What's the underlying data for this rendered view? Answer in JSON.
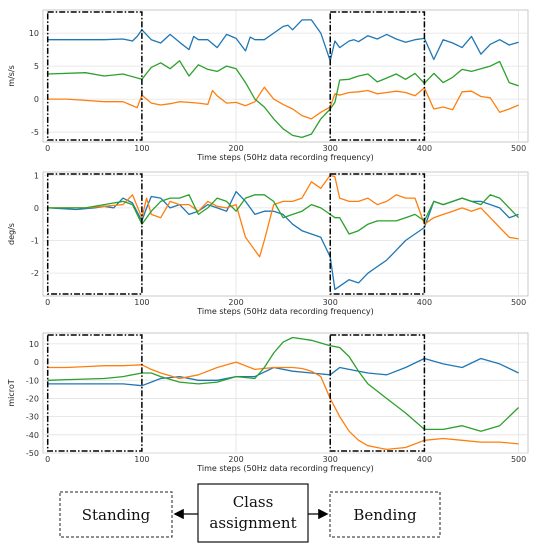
{
  "chart_data": [
    {
      "type": "line",
      "ylabel": "m/s/s",
      "xlabel": "Time steps (50Hz data recording frequency)",
      "xlim": [
        -5,
        510
      ],
      "ylim": [
        -6.5,
        13.5
      ],
      "xticks": [
        0,
        100,
        200,
        300,
        400,
        500
      ],
      "yticks": [
        -5,
        0,
        5,
        10
      ],
      "grid": true,
      "highlight_windows": [
        [
          0,
          100
        ],
        [
          300,
          400
        ]
      ],
      "series": [
        {
          "color": "#1f77b4",
          "x": [
            0,
            40,
            60,
            80,
            90,
            95,
            100,
            110,
            120,
            130,
            140,
            150,
            155,
            160,
            170,
            180,
            190,
            200,
            210,
            215,
            220,
            230,
            240,
            250,
            255,
            260,
            270,
            280,
            290,
            300,
            305,
            310,
            320,
            325,
            330,
            340,
            350,
            360,
            370,
            380,
            390,
            400,
            410,
            420,
            430,
            440,
            450,
            460,
            470,
            480,
            490,
            500
          ],
          "y": [
            9,
            9,
            9,
            9.1,
            8.8,
            9.5,
            10.5,
            9,
            8.5,
            9.8,
            8.6,
            7.5,
            9.5,
            9,
            9,
            7.8,
            9.8,
            9.2,
            7.3,
            9.4,
            9,
            9,
            10,
            11,
            11.2,
            10.5,
            12,
            12,
            10,
            5.8,
            8.8,
            7.8,
            8.8,
            9,
            8.7,
            9.6,
            9.1,
            9.8,
            9.1,
            8.6,
            9,
            9.2,
            6,
            9,
            8.5,
            7.8,
            9.5,
            6.8,
            8.3,
            9,
            8.2,
            8.6
          ]
        },
        {
          "color": "#ff7f0e",
          "x": [
            0,
            20,
            40,
            60,
            80,
            95,
            100,
            110,
            120,
            130,
            140,
            150,
            160,
            170,
            175,
            180,
            190,
            200,
            210,
            220,
            230,
            240,
            250,
            260,
            270,
            280,
            290,
            300,
            305,
            310,
            320,
            330,
            340,
            350,
            360,
            370,
            380,
            390,
            400,
            410,
            420,
            430,
            440,
            450,
            460,
            470,
            480,
            490,
            500
          ],
          "y": [
            0,
            0,
            -0.2,
            -0.4,
            -0.4,
            -1.3,
            0.6,
            -0.6,
            -0.9,
            -0.7,
            -0.4,
            -0.5,
            -0.6,
            -0.8,
            1.3,
            0.5,
            -0.6,
            -0.5,
            -1,
            -0.4,
            1.8,
            0,
            -0.8,
            -1.5,
            -2.5,
            -3,
            -2,
            -1.2,
            0.8,
            0.6,
            1,
            1.1,
            1.3,
            0.8,
            1,
            1.2,
            1,
            0.5,
            1.7,
            -1.5,
            -1.2,
            -1.6,
            1.1,
            1.2,
            0.4,
            0.2,
            -2,
            -1.5,
            -0.9
          ]
        },
        {
          "color": "#2ca02c",
          "x": [
            0,
            40,
            60,
            80,
            100,
            110,
            120,
            130,
            140,
            150,
            160,
            170,
            180,
            190,
            200,
            210,
            220,
            230,
            240,
            250,
            260,
            270,
            280,
            290,
            300,
            305,
            310,
            320,
            330,
            340,
            350,
            360,
            370,
            380,
            390,
            400,
            410,
            420,
            430,
            440,
            450,
            460,
            470,
            480,
            490,
            500
          ],
          "y": [
            3.8,
            4,
            3.5,
            3.8,
            3,
            4.8,
            5.5,
            4.6,
            5.8,
            3.5,
            5.2,
            4.5,
            4.2,
            5,
            4.6,
            2.5,
            0,
            -1.2,
            -3,
            -4.5,
            -5.5,
            -5.8,
            -5.3,
            -3,
            -1.5,
            -0.5,
            2.9,
            3,
            3.5,
            3.8,
            2.6,
            3.2,
            3.8,
            3,
            3.9,
            2.4,
            3.9,
            2.5,
            3.3,
            4.5,
            4.2,
            4.6,
            5,
            5.7,
            2.5,
            2
          ]
        }
      ]
    },
    {
      "type": "line",
      "ylabel": "deg/s",
      "xlabel": "Time steps (50Hz data recording frequency)",
      "xlim": [
        -5,
        510
      ],
      "ylim": [
        -2.7,
        1.1
      ],
      "xticks": [
        0,
        100,
        200,
        300,
        400,
        500
      ],
      "yticks": [
        -2,
        -1,
        0,
        1
      ],
      "grid": true,
      "highlight_windows": [
        [
          0,
          100
        ],
        [
          300,
          400
        ]
      ],
      "series": [
        {
          "color": "#1f77b4",
          "x": [
            0,
            30,
            50,
            60,
            70,
            80,
            90,
            100,
            105,
            110,
            120,
            130,
            140,
            150,
            160,
            170,
            180,
            190,
            200,
            210,
            220,
            230,
            240,
            250,
            260,
            270,
            280,
            290,
            295,
            300,
            305,
            310,
            320,
            330,
            340,
            350,
            360,
            370,
            380,
            390,
            400,
            410,
            420,
            430,
            440,
            450,
            460,
            470,
            480,
            490,
            500
          ],
          "y": [
            0,
            -0.05,
            0,
            0.05,
            0,
            0.3,
            0.15,
            -0.4,
            0,
            0.35,
            0.3,
            0,
            0.1,
            -0.2,
            -0.1,
            0.1,
            0,
            -0.1,
            0.5,
            0.2,
            -0.2,
            -0.1,
            -0.1,
            -0.2,
            -0.5,
            -0.7,
            -0.8,
            -0.9,
            -1.2,
            -1.5,
            -2.5,
            -2.4,
            -2.2,
            -2.3,
            -2.0,
            -1.8,
            -1.6,
            -1.3,
            -1.0,
            -0.8,
            -0.6,
            0.2,
            0.1,
            0.2,
            0.3,
            0.2,
            0.2,
            0.1,
            0,
            -0.3,
            -0.2
          ]
        },
        {
          "color": "#ff7f0e",
          "x": [
            0,
            40,
            60,
            80,
            90,
            100,
            105,
            110,
            120,
            130,
            140,
            150,
            160,
            170,
            180,
            190,
            200,
            210,
            220,
            225,
            230,
            240,
            250,
            260,
            270,
            280,
            290,
            300,
            305,
            310,
            320,
            330,
            340,
            350,
            360,
            370,
            380,
            390,
            400,
            410,
            420,
            430,
            440,
            450,
            460,
            470,
            480,
            490,
            500
          ],
          "y": [
            0,
            0,
            0.05,
            0.1,
            0.4,
            -0.3,
            0.3,
            -0.2,
            -0.3,
            0.2,
            0.1,
            0.1,
            -0.1,
            0.2,
            0.05,
            0,
            0.1,
            -0.9,
            -1.3,
            -1.5,
            -1.0,
            0.1,
            0.2,
            0.2,
            0.3,
            0.8,
            0.6,
            1.0,
            0.95,
            0.3,
            0.2,
            0.2,
            0.3,
            0.1,
            0.2,
            0.4,
            0.3,
            0.3,
            -0.5,
            -0.3,
            -0.2,
            -0.1,
            0,
            -0.1,
            0,
            -0.3,
            -0.6,
            -0.9,
            -0.95
          ]
        },
        {
          "color": "#2ca02c",
          "x": [
            0,
            40,
            60,
            80,
            90,
            100,
            110,
            120,
            130,
            140,
            150,
            160,
            170,
            180,
            190,
            200,
            210,
            220,
            230,
            240,
            250,
            260,
            270,
            280,
            290,
            300,
            305,
            310,
            320,
            330,
            340,
            350,
            360,
            370,
            380,
            390,
            400,
            410,
            420,
            430,
            440,
            450,
            460,
            470,
            480,
            490,
            500
          ],
          "y": [
            0,
            0,
            0.1,
            0.2,
            0.1,
            -0.5,
            -0.1,
            0.2,
            0.3,
            0.3,
            0.4,
            -0.2,
            0,
            0.3,
            0.2,
            -0.1,
            0.3,
            0.4,
            0.4,
            0.2,
            -0.3,
            -0.2,
            -0.1,
            0.1,
            0,
            -0.2,
            -0.3,
            -0.3,
            -0.8,
            -0.7,
            -0.5,
            -0.4,
            -0.4,
            -0.4,
            -0.3,
            -0.2,
            -0.4,
            0.2,
            0.1,
            0.2,
            0.3,
            0.2,
            0.1,
            0.4,
            0.3,
            0,
            -0.3
          ]
        }
      ]
    },
    {
      "type": "line",
      "ylabel": "microT",
      "xlabel": "Time steps (50Hz data recording frequency)",
      "xlim": [
        -5,
        510
      ],
      "ylim": [
        -50,
        16
      ],
      "xticks": [
        0,
        100,
        200,
        300,
        400,
        500
      ],
      "yticks": [
        -50,
        -40,
        -30,
        -20,
        -10,
        0,
        10
      ],
      "grid": true,
      "highlight_windows": [
        [
          0,
          100
        ],
        [
          300,
          400
        ]
      ],
      "series": [
        {
          "color": "#1f77b4",
          "x": [
            0,
            30,
            60,
            80,
            100,
            110,
            120,
            140,
            160,
            180,
            200,
            220,
            240,
            260,
            280,
            300,
            310,
            320,
            340,
            360,
            380,
            400,
            420,
            440,
            460,
            480,
            500
          ],
          "y": [
            -12,
            -12,
            -12,
            -12,
            -13,
            -11,
            -9,
            -8,
            -10,
            -10,
            -8,
            -8,
            -3,
            -5,
            -6,
            -7,
            -3,
            -4,
            -6,
            -7,
            -3,
            2,
            -1,
            -3,
            2,
            -1,
            -6
          ]
        },
        {
          "color": "#ff7f0e",
          "x": [
            0,
            20,
            40,
            60,
            80,
            100,
            110,
            120,
            140,
            160,
            180,
            200,
            220,
            240,
            260,
            270,
            280,
            290,
            300,
            310,
            320,
            330,
            340,
            360,
            380,
            400,
            420,
            440,
            460,
            480,
            500
          ],
          "y": [
            -3,
            -3,
            -2.5,
            -2,
            -2,
            -1.5,
            -4,
            -6,
            -9,
            -7,
            -3,
            0,
            -4,
            -3,
            -3,
            -3.5,
            -5,
            -8,
            -20,
            -30,
            -38,
            -43,
            -46,
            -48,
            -47,
            -43,
            -42,
            -43,
            -44,
            -44,
            -45
          ]
        },
        {
          "color": "#2ca02c",
          "x": [
            0,
            30,
            60,
            80,
            100,
            110,
            120,
            140,
            160,
            180,
            200,
            220,
            230,
            240,
            250,
            260,
            280,
            300,
            310,
            320,
            330,
            340,
            360,
            380,
            400,
            420,
            440,
            460,
            480,
            500
          ],
          "y": [
            -10,
            -9.5,
            -9,
            -8,
            -6,
            -6,
            -8,
            -11,
            -12,
            -11,
            -8,
            -9,
            -3,
            5,
            11,
            13.5,
            12,
            9,
            8,
            3,
            -5,
            -12,
            -20,
            -28,
            -37,
            -37,
            -35,
            -38,
            -35,
            -25
          ]
        }
      ]
    }
  ],
  "diagram": {
    "left_label": "Standing",
    "center_label": [
      "Class",
      "assignment"
    ],
    "right_label": "Bending"
  }
}
